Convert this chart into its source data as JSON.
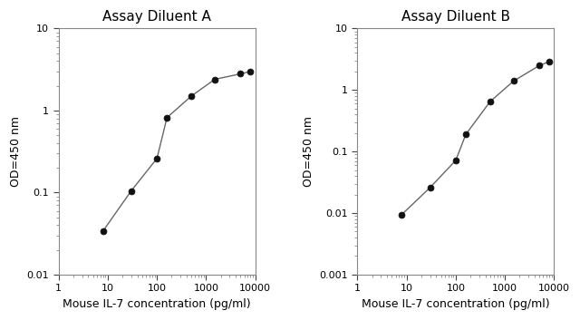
{
  "chart_A": {
    "title": "Assay Diluent A",
    "x": [
      8,
      30,
      100,
      160,
      500,
      1500,
      5000,
      8000
    ],
    "y": [
      0.034,
      0.105,
      0.26,
      0.82,
      1.5,
      2.4,
      2.8,
      3.0
    ],
    "xlim": [
      1,
      10000
    ],
    "ylim": [
      0.01,
      10
    ],
    "xlabel": "Mouse IL-7 concentration (pg/ml)",
    "ylabel": "OD=450 nm",
    "xticks": [
      1,
      10,
      100,
      1000,
      10000
    ],
    "yticks": [
      0.01,
      0.1,
      1,
      10
    ],
    "ytick_labels": [
      "0.01",
      "0.1",
      "1",
      "10"
    ]
  },
  "chart_B": {
    "title": "Assay Diluent B",
    "x": [
      8,
      30,
      100,
      160,
      500,
      1500,
      5000,
      8000
    ],
    "y": [
      0.0095,
      0.026,
      0.072,
      0.19,
      0.65,
      1.4,
      2.5,
      2.9
    ],
    "xlim": [
      1,
      10000
    ],
    "ylim": [
      0.001,
      10
    ],
    "xlabel": "Mouse IL-7 concentration (pg/ml)",
    "ylabel": "OD=450 nm",
    "xticks": [
      1,
      10,
      100,
      1000,
      10000
    ],
    "yticks": [
      0.001,
      0.01,
      0.1,
      1,
      10
    ],
    "ytick_labels": [
      "0.001",
      "0.01",
      "0.1",
      "1",
      "10"
    ]
  },
  "line_color": "#666666",
  "marker_color": "#111111",
  "marker_size": 5,
  "title_fontsize": 11,
  "label_fontsize": 9,
  "tick_fontsize": 8,
  "bg_color": "#ffffff"
}
